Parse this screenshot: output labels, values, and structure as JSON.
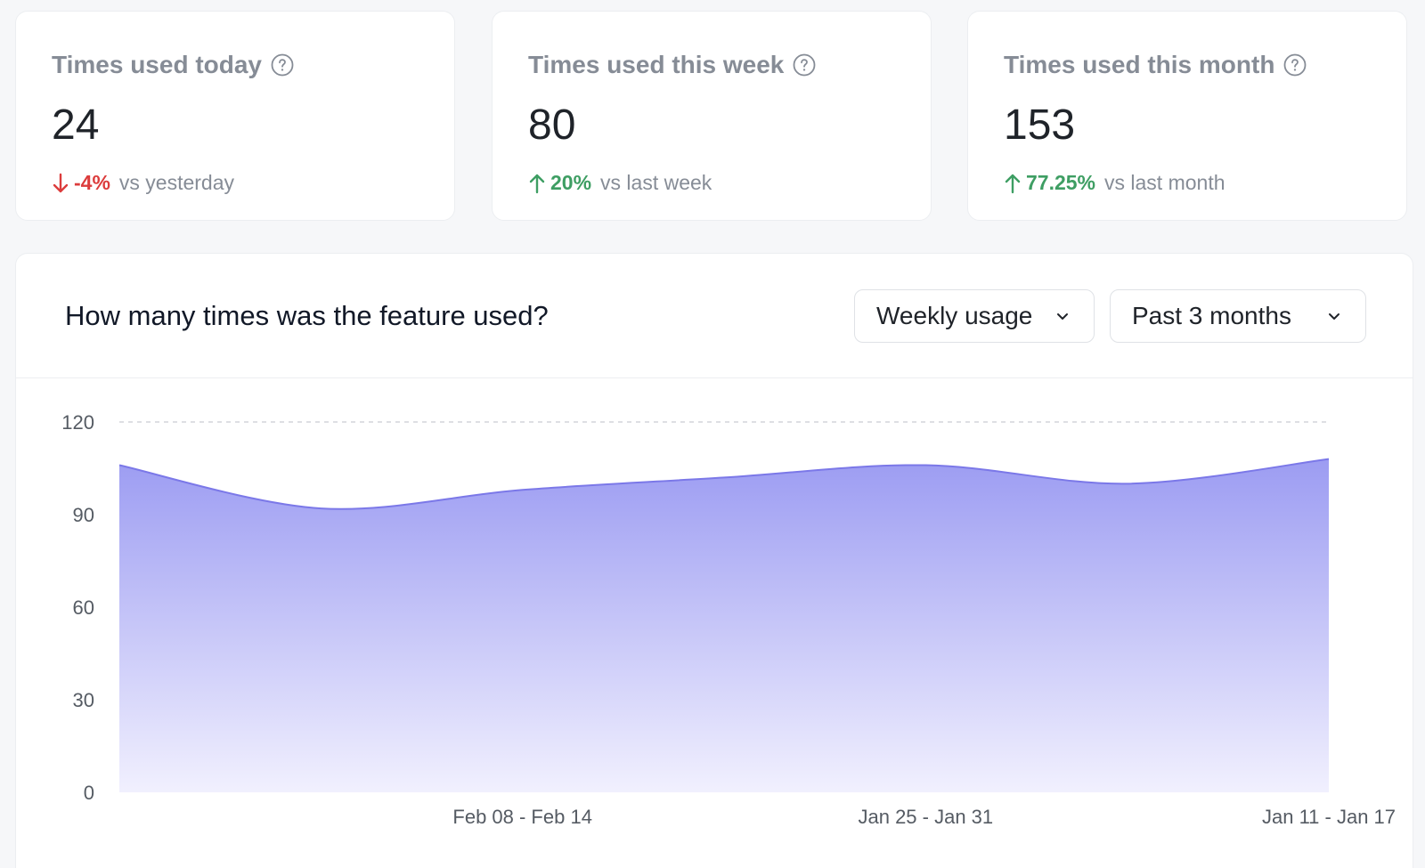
{
  "stats": [
    {
      "title": "Times used today",
      "value": "24",
      "direction": "down",
      "change": "-4%",
      "label": "vs yesterday"
    },
    {
      "title": "Times used this week",
      "value": "80",
      "direction": "up",
      "change": "20%",
      "label": "vs last week"
    },
    {
      "title": "Times used this month",
      "value": "153",
      "direction": "up",
      "change": "77.25%",
      "label": "vs last month"
    }
  ],
  "icons": {
    "help": "question-circle-icon",
    "up": "arrow-up-icon",
    "down": "arrow-down-icon",
    "chevron": "chevron-down-icon"
  },
  "colors": {
    "up": "#3e9e63",
    "down": "#dc3c3c",
    "area_top": "#9c9cf2",
    "area_bottom": "#f1f0fe",
    "line": "#7b78e8"
  },
  "chart_section": {
    "title": "How many times was the feature used?",
    "granularity_select": "Weekly usage",
    "range_select": "Past 3 months"
  },
  "chart_data": {
    "type": "area",
    "categories": [
      "Feb 08 - Feb 14",
      "Jan 25 - Jan 31",
      "Jan 11 - Jan 17"
    ],
    "x": [
      0,
      1,
      2,
      3,
      4,
      5,
      6
    ],
    "values": [
      106,
      92,
      98,
      102,
      106,
      100,
      108
    ],
    "ylim": [
      0,
      120
    ],
    "yticks": [
      0,
      30,
      60,
      90,
      120
    ],
    "grid": true
  }
}
